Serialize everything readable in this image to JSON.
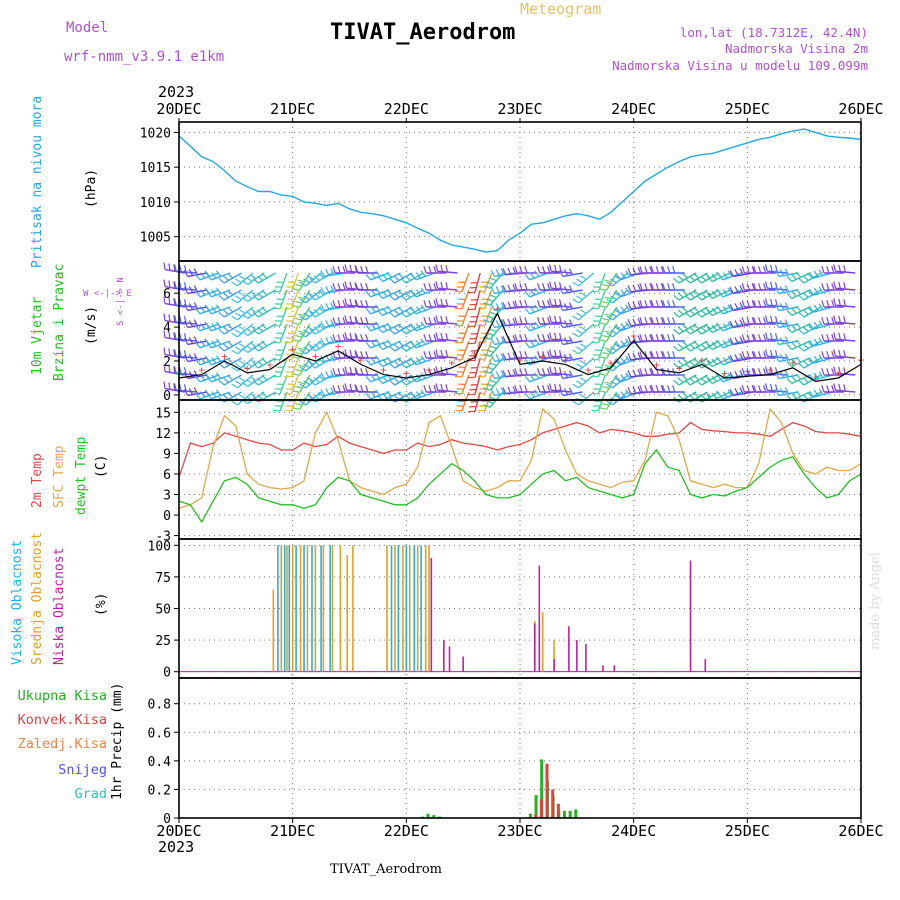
{
  "header": {
    "title": "TIVAT_Aerodrom",
    "meteogram_label": "Meteogram",
    "model_label": "Model",
    "model_name": "wrf-nmm_v3.9.1 e1km",
    "lonlat": "lon,lat (18.7312E, 42.4N)",
    "altitude_station": "Nadmorska Visina 2m",
    "altitude_model": "Nadmorska Visina u modelu 109.099m",
    "year_top": "2023",
    "year_bottom": "2023",
    "station_bottom": "TIVAT_Aerodrom",
    "credit": "made by Angel"
  },
  "x_ticks": [
    "20DEC",
    "21DEC",
    "22DEC",
    "23DEC",
    "24DEC",
    "25DEC",
    "26DEC"
  ],
  "panel_labels": {
    "pressure": {
      "title": "Pritisak na nivou mora",
      "unit": "(hPa)"
    },
    "wind": {
      "title1": "10m Vjetar",
      "title2": "Brzina i Pravac",
      "unit": "(m/s)",
      "compass_ns": "S <-|-> N",
      "compass_we": "W <-|-> E"
    },
    "temp": {
      "t2m": "2m Temp",
      "sfc": "SFC Temp",
      "dew": "dewpt Temp",
      "unit": "(C)"
    },
    "cloud": {
      "high": "Visoka Oblacnost",
      "mid": "Srednja Oblacnost",
      "low": "Niska Oblacnost",
      "unit": "(%)"
    },
    "precip": {
      "total": "Ukupna Kisa",
      "conv": "Konvek.Kisa",
      "frozen": "Zaledj.Kisa",
      "snow": "Snijeg",
      "hail": "Grad",
      "unit": "1hr Precip (mm)"
    }
  },
  "colors": {
    "pressure": "#20a8e0",
    "t2m": "#e04848",
    "sfc": "#e0a848",
    "dew": "#20c020",
    "cloud_high": "#20b0e0",
    "cloud_mid": "#e0a020",
    "cloud_low": "#c020a0",
    "precip_total": "#20b020",
    "precip_conv": "#e04040",
    "precip_frozen": "#f08040",
    "precip_snow": "#5050e0",
    "precip_hail": "#30c0c0"
  },
  "chart_data": [
    {
      "type": "line",
      "name": "pressure",
      "ylim": [
        1001.5,
        1021.5
      ],
      "yticks": [
        1005,
        1010,
        1015,
        1020
      ],
      "x_days": [
        0,
        0.1,
        0.2,
        0.3,
        0.4,
        0.5,
        0.6,
        0.7,
        0.8,
        0.9,
        1.0,
        1.1,
        1.2,
        1.3,
        1.4,
        1.5,
        1.6,
        1.7,
        1.8,
        1.9,
        2.0,
        2.1,
        2.2,
        2.3,
        2.4,
        2.5,
        2.6,
        2.7,
        2.8,
        2.9,
        3.0,
        3.1,
        3.2,
        3.3,
        3.4,
        3.5,
        3.6,
        3.7,
        3.8,
        3.9,
        4.0,
        4.1,
        4.2,
        4.3,
        4.4,
        4.5,
        4.6,
        4.7,
        4.8,
        4.9,
        5.0,
        5.1,
        5.2,
        5.3,
        5.4,
        5.5,
        5.6,
        5.7,
        5.8,
        5.9,
        6.0
      ],
      "values": [
        1019.5,
        1018.0,
        1016.5,
        1015.8,
        1014.5,
        1013.0,
        1012.2,
        1011.5,
        1011.5,
        1011.0,
        1010.8,
        1010.0,
        1009.8,
        1009.5,
        1009.8,
        1009.0,
        1008.5,
        1008.3,
        1008.0,
        1007.5,
        1007.0,
        1006.2,
        1005.5,
        1004.5,
        1003.8,
        1003.5,
        1003.2,
        1002.8,
        1003.0,
        1004.5,
        1005.5,
        1006.8,
        1007.0,
        1007.5,
        1008.0,
        1008.3,
        1008.0,
        1007.5,
        1008.5,
        1010.0,
        1011.5,
        1013.0,
        1014.0,
        1015.0,
        1015.8,
        1016.5,
        1016.8,
        1017.0,
        1017.5,
        1018.0,
        1018.5,
        1019.0,
        1019.3,
        1019.8,
        1020.2,
        1020.5,
        1020.0,
        1019.5,
        1019.3,
        1019.2,
        1019.0
      ]
    },
    {
      "type": "line",
      "name": "wind_speed",
      "ylim": [
        -0.3,
        7.9
      ],
      "yticks": [
        0,
        2,
        4,
        6
      ],
      "x_days": [
        0,
        0.2,
        0.4,
        0.6,
        0.8,
        1.0,
        1.2,
        1.4,
        1.6,
        1.8,
        2.0,
        2.2,
        2.4,
        2.6,
        2.8,
        3.0,
        3.2,
        3.4,
        3.6,
        3.8,
        4.0,
        4.2,
        4.4,
        4.6,
        4.8,
        5.0,
        5.2,
        5.4,
        5.6,
        5.8,
        6.0
      ],
      "values": [
        1.0,
        1.2,
        2.0,
        1.3,
        1.5,
        2.4,
        2.0,
        2.6,
        1.8,
        1.2,
        1.0,
        1.2,
        1.6,
        2.2,
        4.8,
        1.8,
        2.0,
        1.8,
        1.2,
        1.6,
        3.2,
        1.5,
        1.3,
        1.8,
        1.0,
        1.1,
        1.2,
        1.6,
        0.8,
        1.0,
        1.8
      ]
    },
    {
      "type": "line",
      "name": "temperature",
      "ylim": [
        -3.5,
        16.8
      ],
      "yticks": [
        -3,
        0,
        3,
        6,
        9,
        12,
        15
      ],
      "x_days": [
        0,
        0.1,
        0.2,
        0.3,
        0.4,
        0.5,
        0.6,
        0.7,
        0.8,
        0.9,
        1.0,
        1.1,
        1.2,
        1.3,
        1.4,
        1.5,
        1.6,
        1.7,
        1.8,
        1.9,
        2.0,
        2.1,
        2.2,
        2.3,
        2.4,
        2.5,
        2.6,
        2.7,
        2.8,
        2.9,
        3.0,
        3.1,
        3.2,
        3.3,
        3.4,
        3.5,
        3.6,
        3.7,
        3.8,
        3.9,
        4.0,
        4.1,
        4.2,
        4.3,
        4.4,
        4.5,
        4.6,
        4.7,
        4.8,
        4.9,
        5.0,
        5.1,
        5.2,
        5.3,
        5.4,
        5.5,
        5.6,
        5.7,
        5.8,
        5.9,
        6.0
      ],
      "series": [
        {
          "name": "2m Temp",
          "values": [
            5.5,
            10.5,
            10.0,
            10.5,
            12.0,
            11.5,
            11.0,
            10.5,
            10.3,
            9.5,
            9.5,
            10.5,
            10.0,
            10.3,
            11.5,
            10.5,
            10.0,
            9.5,
            9.0,
            9.5,
            9.5,
            10.5,
            10.0,
            10.3,
            11.0,
            10.5,
            10.3,
            10.0,
            9.5,
            10.0,
            10.3,
            11.0,
            12.0,
            12.5,
            13.0,
            13.5,
            13.0,
            12.0,
            12.5,
            12.3,
            12.0,
            11.5,
            11.5,
            11.8,
            12.0,
            13.5,
            12.5,
            12.3,
            12.2,
            12.0,
            12.0,
            11.8,
            11.5,
            12.5,
            13.5,
            13.0,
            12.2,
            12.0,
            12.0,
            11.8,
            11.5
          ]
        },
        {
          "name": "SFC Temp",
          "values": [
            1.0,
            1.5,
            2.5,
            10.0,
            14.5,
            13.0,
            6.0,
            4.5,
            4.0,
            3.8,
            4.0,
            5.0,
            12.0,
            15.0,
            11.0,
            5.0,
            4.0,
            3.5,
            3.0,
            4.0,
            4.5,
            7.0,
            13.5,
            14.5,
            10.0,
            5.0,
            4.0,
            3.5,
            4.0,
            5.0,
            5.0,
            8.0,
            15.5,
            14.0,
            9.5,
            6.0,
            5.0,
            4.5,
            4.0,
            4.8,
            5.0,
            8.0,
            15.0,
            14.5,
            11.0,
            5.0,
            4.5,
            4.0,
            4.5,
            4.0,
            4.0,
            7.5,
            15.5,
            13.5,
            9.0,
            6.5,
            6.0,
            7.0,
            6.5,
            6.5,
            7.5
          ]
        },
        {
          "name": "dewpt Temp",
          "values": [
            2.0,
            1.5,
            -1.0,
            2.0,
            5.0,
            5.5,
            4.5,
            2.5,
            2.0,
            1.5,
            1.5,
            1.0,
            1.5,
            4.0,
            5.5,
            5.0,
            3.0,
            2.5,
            2.0,
            1.5,
            1.5,
            2.5,
            4.5,
            6.0,
            7.5,
            6.5,
            5.0,
            3.0,
            2.5,
            2.5,
            3.0,
            4.5,
            6.0,
            6.5,
            5.0,
            5.5,
            4.0,
            3.5,
            3.0,
            2.5,
            3.0,
            7.5,
            9.5,
            7.0,
            6.5,
            3.0,
            2.5,
            3.0,
            2.8,
            3.5,
            4.0,
            5.5,
            7.0,
            8.0,
            8.5,
            6.0,
            4.0,
            2.5,
            3.0,
            5.0,
            6.0
          ]
        }
      ]
    },
    {
      "type": "bar",
      "name": "cloud_cover",
      "ylim": [
        -5,
        105
      ],
      "yticks": [
        0,
        25,
        50,
        75,
        100
      ],
      "series": [
        {
          "name": "Visoka Oblacnost",
          "x_days": [
            0.87,
            0.93,
            0.97,
            1.03,
            1.1,
            1.17,
            1.25,
            1.33,
            1.87,
            1.93,
            2.0,
            2.07,
            2.13
          ],
          "values": [
            100,
            100,
            100,
            100,
            100,
            100,
            100,
            100,
            100,
            100,
            100,
            100,
            100
          ]
        },
        {
          "name": "Srednja Oblacnost",
          "x_days": [
            0.83,
            0.9,
            0.95,
            1.0,
            1.07,
            1.13,
            1.2,
            1.27,
            1.35,
            1.42,
            1.48,
            1.53,
            1.83,
            1.9,
            1.97,
            2.03,
            2.1,
            2.17,
            2.2,
            3.13,
            3.2,
            3.3
          ],
          "values": [
            65,
            100,
            100,
            100,
            100,
            100,
            100,
            100,
            100,
            100,
            92,
            100,
            100,
            100,
            100,
            100,
            100,
            100,
            100,
            40,
            47,
            25
          ]
        },
        {
          "name": "Niska Oblacnost",
          "x_days": [
            2.22,
            2.33,
            2.38,
            2.5,
            3.13,
            3.17,
            3.3,
            3.43,
            3.5,
            3.58,
            3.73,
            3.83,
            4.5,
            4.63
          ],
          "values": [
            90,
            25,
            20,
            12,
            38,
            84,
            10,
            36,
            25,
            22,
            5,
            5,
            88,
            10
          ]
        }
      ]
    },
    {
      "type": "bar",
      "name": "precipitation",
      "ylim": [
        0,
        0.98
      ],
      "yticks": [
        0,
        0.2,
        0.4,
        0.6,
        0.8
      ],
      "series": [
        {
          "name": "Ukupna Kisa",
          "x_days": [
            2.15,
            2.2,
            2.25,
            2.3,
            3.1,
            3.15,
            3.2,
            3.25,
            3.3,
            3.35,
            3.4,
            3.45,
            3.5
          ],
          "values": [
            0.01,
            0.03,
            0.02,
            0.01,
            0.03,
            0.16,
            0.41,
            0.26,
            0.16,
            0.05,
            0.05,
            0.05,
            0.06
          ]
        },
        {
          "name": "Konvek.Kisa",
          "x_days": [
            3.12,
            3.17,
            3.22,
            3.27,
            3.32
          ],
          "values": [
            0.02,
            0.13,
            0.38,
            0.2,
            0.1
          ]
        }
      ]
    }
  ],
  "wind_barbs": {
    "cols": [
      {
        "x": 0.05,
        "dir": 280,
        "color": "#8040e0"
      },
      {
        "x": 0.15,
        "dir": 275,
        "color": "#5060f0"
      },
      {
        "x": 0.25,
        "dir": 260,
        "color": "#6a3fd0"
      },
      {
        "x": 0.35,
        "dir": 250,
        "color": "#30b0e8"
      },
      {
        "x": 0.45,
        "dir": 250,
        "color": "#30b0e8"
      },
      {
        "x": 0.55,
        "dir": 240,
        "color": "#40a0f0"
      },
      {
        "x": 0.65,
        "dir": 230,
        "color": "#40c0e0"
      },
      {
        "x": 0.75,
        "dir": 235,
        "color": "#40c0e0"
      },
      {
        "x": 0.85,
        "dir": 240,
        "color": "#30c0c0"
      },
      {
        "x": 0.95,
        "dir": 200,
        "color": "#40d0a0"
      },
      {
        "x": 1.05,
        "dir": 200,
        "color": "#e0c040"
      },
      {
        "x": 1.15,
        "dir": 210,
        "color": "#60d060"
      },
      {
        "x": 1.25,
        "dir": 230,
        "color": "#30b0e8"
      },
      {
        "x": 1.35,
        "dir": 240,
        "color": "#40c0e0"
      },
      {
        "x": 1.45,
        "dir": 260,
        "color": "#30b0e8"
      },
      {
        "x": 1.55,
        "dir": 270,
        "color": "#8040e0"
      },
      {
        "x": 1.65,
        "dir": 275,
        "color": "#8040e0"
      },
      {
        "x": 1.75,
        "dir": 270,
        "color": "#6a3fd0"
      },
      {
        "x": 1.85,
        "dir": 250,
        "color": "#30b0e8"
      },
      {
        "x": 1.95,
        "dir": 245,
        "color": "#30b0e8"
      },
      {
        "x": 2.05,
        "dir": 240,
        "color": "#40a0f0"
      },
      {
        "x": 2.15,
        "dir": 240,
        "color": "#30c0c0"
      },
      {
        "x": 2.25,
        "dir": 250,
        "color": "#30b0e8"
      },
      {
        "x": 2.35,
        "dir": 270,
        "color": "#8040e0"
      },
      {
        "x": 2.45,
        "dir": 275,
        "color": "#8040e0"
      },
      {
        "x": 2.55,
        "dir": 200,
        "color": "#f08030"
      },
      {
        "x": 2.65,
        "dir": 195,
        "color": "#e04040"
      },
      {
        "x": 2.75,
        "dir": 200,
        "color": "#f0a030"
      },
      {
        "x": 2.85,
        "dir": 220,
        "color": "#30c0a0"
      },
      {
        "x": 2.95,
        "dir": 260,
        "color": "#30b0e8"
      },
      {
        "x": 3.05,
        "dir": 265,
        "color": "#8040e0"
      },
      {
        "x": 3.15,
        "dir": 270,
        "color": "#8040e0"
      },
      {
        "x": 3.25,
        "dir": 250,
        "color": "#30b0e8"
      },
      {
        "x": 3.35,
        "dir": 270,
        "color": "#6a3fd0"
      },
      {
        "x": 3.45,
        "dir": 275,
        "color": "#8040e0"
      },
      {
        "x": 3.55,
        "dir": 260,
        "color": "#5060f0"
      },
      {
        "x": 3.65,
        "dir": 230,
        "color": "#40c0e0"
      },
      {
        "x": 3.75,
        "dir": 200,
        "color": "#40d0a0"
      },
      {
        "x": 3.85,
        "dir": 210,
        "color": "#60d060"
      },
      {
        "x": 3.95,
        "dir": 230,
        "color": "#30b0e8"
      },
      {
        "x": 4.05,
        "dir": 250,
        "color": "#40a0f0"
      },
      {
        "x": 4.15,
        "dir": 265,
        "color": "#6a3fd0"
      },
      {
        "x": 4.25,
        "dir": 270,
        "color": "#8040e0"
      },
      {
        "x": 4.35,
        "dir": 270,
        "color": "#8040e0"
      },
      {
        "x": 4.45,
        "dir": 270,
        "color": "#5060f0"
      },
      {
        "x": 4.55,
        "dir": 240,
        "color": "#30c0a0"
      },
      {
        "x": 4.65,
        "dir": 240,
        "color": "#30c0a0"
      },
      {
        "x": 4.75,
        "dir": 240,
        "color": "#30c0a0"
      },
      {
        "x": 4.85,
        "dir": 245,
        "color": "#30c0a0"
      },
      {
        "x": 4.95,
        "dir": 250,
        "color": "#30b0e8"
      },
      {
        "x": 5.05,
        "dir": 260,
        "color": "#6a3fd0"
      },
      {
        "x": 5.15,
        "dir": 270,
        "color": "#8040e0"
      },
      {
        "x": 5.25,
        "dir": 270,
        "color": "#8040e0"
      },
      {
        "x": 5.35,
        "dir": 275,
        "color": "#5060f0"
      },
      {
        "x": 5.45,
        "dir": 260,
        "color": "#30b0e8"
      },
      {
        "x": 5.55,
        "dir": 245,
        "color": "#30c0a0"
      },
      {
        "x": 5.65,
        "dir": 240,
        "color": "#30c0c0"
      },
      {
        "x": 5.75,
        "dir": 255,
        "color": "#30b0e8"
      },
      {
        "x": 5.85,
        "dir": 270,
        "color": "#8040e0"
      },
      {
        "x": 5.95,
        "dir": 275,
        "color": "#8040e0"
      }
    ]
  }
}
